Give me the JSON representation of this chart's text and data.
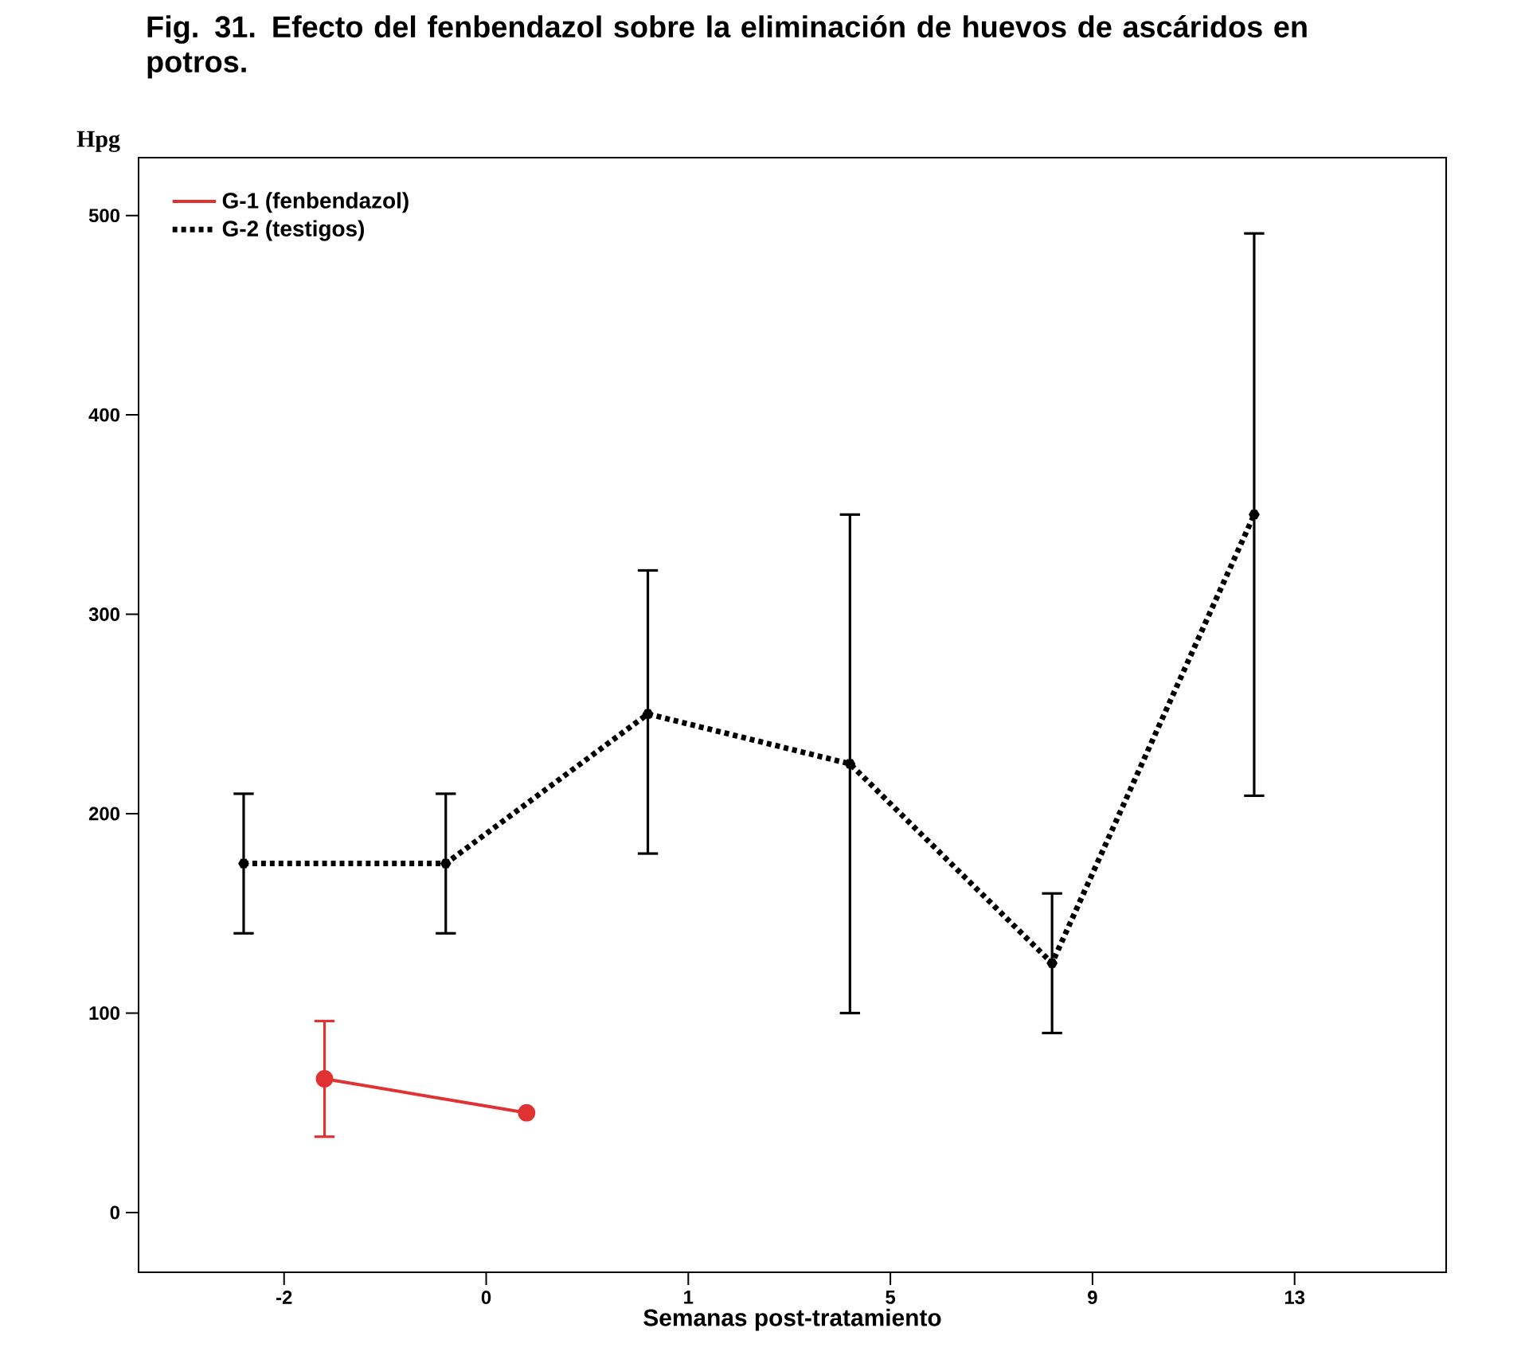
{
  "chart_data": {
    "type": "line",
    "title": "Fig. 31. Efecto del fenbendazol sobre la eliminación de huevos de ascáridos en potros.",
    "ylabel": "Hpg",
    "xlabel": "Semanas post-tratamiento",
    "categories": [
      "-2",
      "0",
      "1",
      "5",
      "9",
      "13"
    ],
    "ylim": [
      -30,
      529
    ],
    "yticks": [
      0,
      100,
      200,
      300,
      400,
      500
    ],
    "legend": "top left",
    "grid": false,
    "series": [
      {
        "name": "G-1 (fenbendazol)",
        "color": "#e03232",
        "marker": "circle",
        "line_style": "solid",
        "values": [
          67,
          50,
          null,
          null,
          null,
          null
        ],
        "errors": [
          [
            38,
            96
          ],
          null,
          null,
          null,
          null,
          null
        ]
      },
      {
        "name": "G-2 (testigos)",
        "color": "#000000",
        "marker": "cross",
        "line_style": "dotted",
        "values": [
          175,
          175,
          250,
          225,
          125,
          350
        ],
        "errors": [
          [
            140,
            210
          ],
          [
            140,
            210
          ],
          [
            180,
            322
          ],
          [
            100,
            350
          ],
          [
            90,
            160
          ],
          [
            209,
            491
          ]
        ]
      }
    ]
  }
}
